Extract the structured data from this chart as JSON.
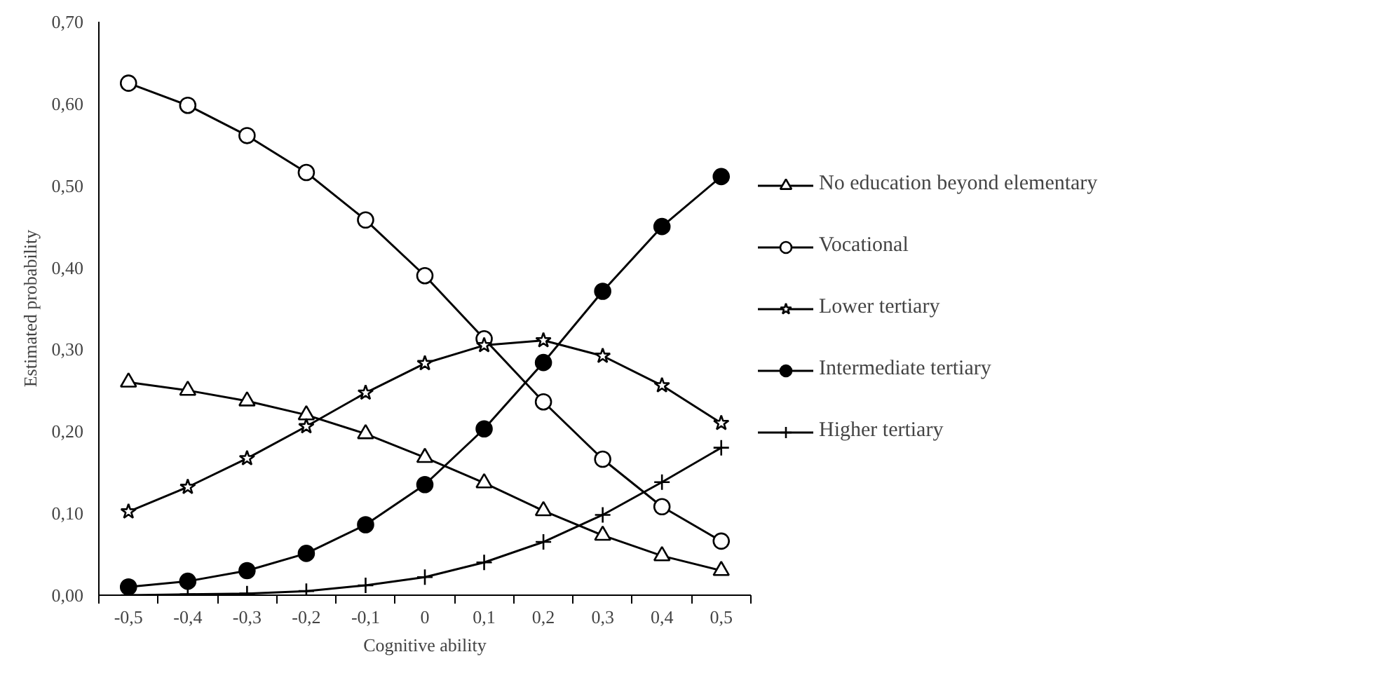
{
  "chart_data": {
    "type": "line",
    "xlabel": "Cognitive ability",
    "ylabel": "Estimated probability",
    "categories": [
      "-0,5",
      "-0,4",
      "-0,3",
      "-0,2",
      "-0,1",
      "0",
      "0,1",
      "0,2",
      "0,3",
      "0,4",
      "0,5"
    ],
    "ylim": [
      0,
      0.7
    ],
    "yticks": [
      {
        "value": 0,
        "label": "0,00"
      },
      {
        "value": 0.1,
        "label": "0,10"
      },
      {
        "value": 0.2,
        "label": "0,20"
      },
      {
        "value": 0.3,
        "label": "0,30"
      },
      {
        "value": 0.4,
        "label": "0,40"
      },
      {
        "value": 0.5,
        "label": "0,50"
      },
      {
        "value": 0.6,
        "label": "0,60"
      },
      {
        "value": 0.7,
        "label": "0,70"
      }
    ],
    "grid": false,
    "legend": "right",
    "line_style": "solid",
    "series": [
      {
        "name": "No education beyond elementary",
        "color": "#000000",
        "marker": "triangle",
        "values": [
          0.26,
          0.25,
          0.237,
          0.22,
          0.197,
          0.168,
          0.137,
          0.103,
          0.073,
          0.048,
          0.03
        ]
      },
      {
        "name": "Vocational",
        "color": "#000000",
        "marker": "circle",
        "values": [
          0.625,
          0.598,
          0.561,
          0.516,
          0.458,
          0.39,
          0.313,
          0.236,
          0.166,
          0.108,
          0.066
        ]
      },
      {
        "name": "Lower tertiary",
        "color": "#000000",
        "marker": "star",
        "values": [
          0.102,
          0.132,
          0.167,
          0.206,
          0.247,
          0.283,
          0.305,
          0.311,
          0.292,
          0.256,
          0.21
        ]
      },
      {
        "name": "Intermediate tertiary",
        "color": "#000000",
        "marker": "circle",
        "colors": [
          "#000000",
          "#000000",
          "#000000",
          "#000000",
          "#000000",
          "#000000",
          "#000000",
          "#000000",
          "#000000",
          "#000000",
          "#000000"
        ],
        "values": [
          0.01,
          0.017,
          0.03,
          0.051,
          0.086,
          0.135,
          0.203,
          0.284,
          0.371,
          0.45,
          0.511
        ]
      },
      {
        "name": "Higher tertiary",
        "color": "#000000",
        "marker": "cross",
        "values": [
          0.0,
          0.001,
          0.002,
          0.005,
          0.012,
          0.022,
          0.04,
          0.065,
          0.098,
          0.138,
          0.18
        ]
      }
    ]
  }
}
